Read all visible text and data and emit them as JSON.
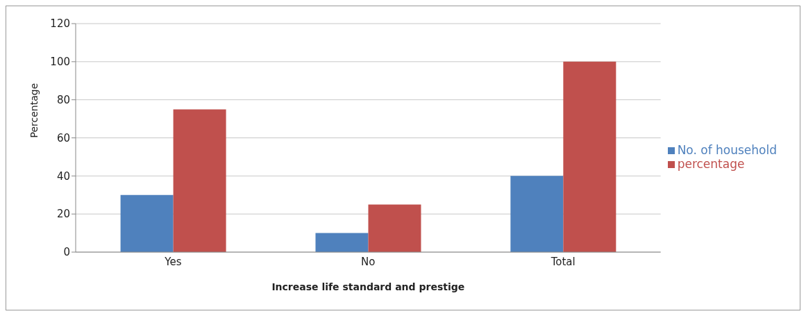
{
  "chart_data": {
    "type": "bar",
    "xlabel": "Increase life standard and prestige",
    "ylabel": "Percentage",
    "categories": [
      "Yes",
      "No",
      "Total"
    ],
    "series": [
      {
        "name": "No. of household",
        "color": "#4f81bd",
        "values": [
          30,
          10,
          40
        ]
      },
      {
        "name": "percentage",
        "color": "#c0504d",
        "values": [
          75,
          25,
          100
        ]
      }
    ],
    "ylim": [
      0,
      120
    ],
    "yticks": [
      0,
      20,
      40,
      60,
      80,
      100,
      120
    ],
    "grid": "y",
    "legend": "right"
  }
}
